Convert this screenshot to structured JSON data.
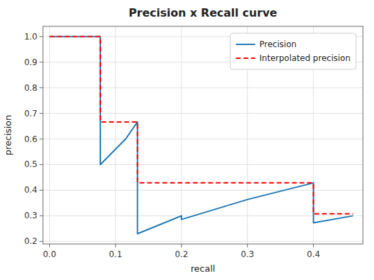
{
  "chart_data": {
    "type": "line",
    "title": "Precision x Recall curve",
    "x_label": "recall",
    "y_label": "precision",
    "xlim": [
      -0.01,
      0.475
    ],
    "ylim": [
      0.19,
      1.04
    ],
    "xticks": [
      {
        "value": 0.0,
        "label": "0.0"
      },
      0.1,
      0.2,
      0.3,
      0.4
    ],
    "yticks": [
      0.2,
      0.3,
      0.4,
      0.5,
      0.6,
      0.7,
      0.8,
      0.9,
      {
        "value": 1.0,
        "label": "1.0"
      }
    ],
    "grid": true,
    "legend": "upper right",
    "series": [
      {
        "name": "Precision",
        "color": "#1f77b4",
        "line_style": "solid",
        "x": [
          0.0,
          0.0769,
          0.0769,
          0.1154,
          0.1333,
          0.1333,
          0.2,
          0.2,
          0.3,
          0.4,
          0.4,
          0.46
        ],
        "values": [
          1.0,
          1.0,
          0.5,
          0.6,
          0.6667,
          0.23,
          0.3,
          0.2857,
          0.3636,
          0.4286,
          0.2727,
          0.3
        ]
      },
      {
        "name": "Interpolated precision",
        "color": "red",
        "line_style": "dashed",
        "x": [
          0.0,
          0.0769,
          0.0769,
          0.1333,
          0.1333,
          0.4,
          0.4,
          0.46
        ],
        "values": [
          1.0,
          1.0,
          0.6667,
          0.6667,
          0.4286,
          0.4286,
          0.3077,
          0.3077
        ]
      }
    ]
  }
}
